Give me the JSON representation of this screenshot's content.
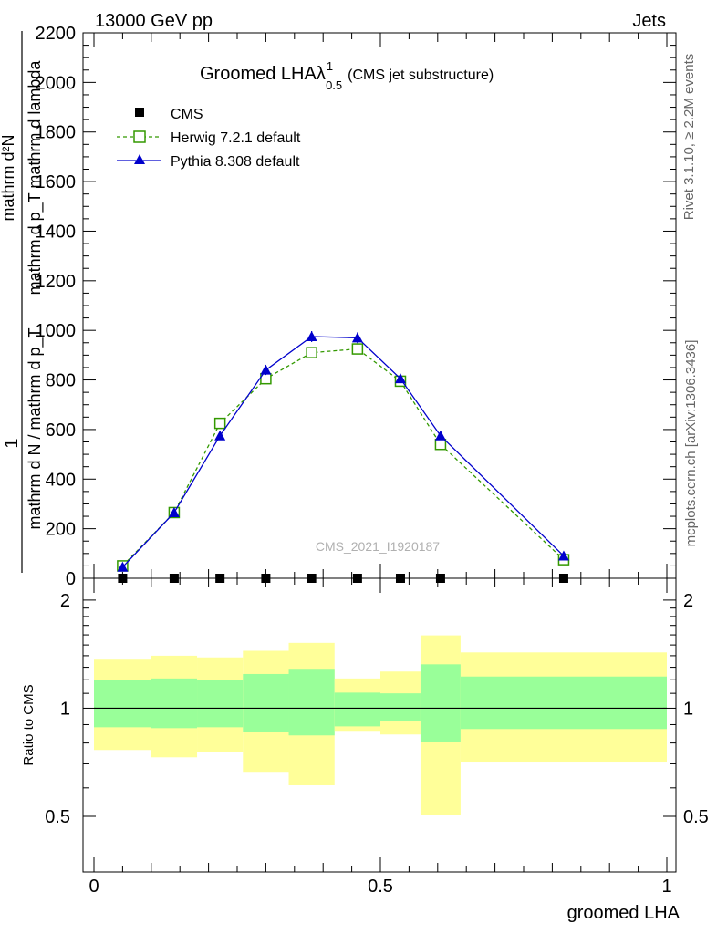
{
  "header": {
    "left": "13000 GeV pp",
    "right": "Jets"
  },
  "side_labels": {
    "rivet": "Rivet 3.1.10, ≥ 2.2M events",
    "mcplots": "mcplots.cern.ch [arXiv:1306.3436]"
  },
  "watermark": "CMS_2021_I1920187",
  "chart_data": [
    {
      "type": "line",
      "title": "Groomed LHA",
      "title_symbol": "λ",
      "title_superscript": "1",
      "title_subscript": "0.5",
      "title_suffix": "(CMS jet substructure)",
      "ylabel_top": "1",
      "ylabel_bottom": "mathrm d N / mathrm d p_T",
      "ylabel_top2": "mathrm d²N",
      "ylabel_bottom2": "mathrm d p_T mathrm d lambda",
      "ylim": [
        0,
        2200
      ],
      "xlim": [
        -0.02,
        1.0
      ],
      "yticks": [
        0,
        200,
        400,
        600,
        800,
        1000,
        1200,
        1400,
        1600,
        1800,
        2000,
        2200
      ],
      "ytick_labels": [
        "0",
        "200",
        "400",
        "600",
        "800",
        "1000",
        "1200",
        "1400",
        "1600",
        "1800",
        "2000",
        "2200"
      ],
      "legend_position": "top-left",
      "x": [
        0.05,
        0.14,
        0.22,
        0.3,
        0.38,
        0.46,
        0.535,
        0.605,
        0.82
      ],
      "series": [
        {
          "name": "CMS",
          "marker": "square-filled",
          "color": "#000000",
          "values": [
            0,
            0,
            0,
            0,
            0,
            0,
            0,
            0,
            0
          ]
        },
        {
          "name": "Herwig 7.2.1 default",
          "marker": "square-open",
          "line": "dashed",
          "color": "#339900",
          "values": [
            50,
            265,
            625,
            805,
            910,
            925,
            795,
            540,
            75
          ]
        },
        {
          "name": "Pythia 8.308 default",
          "marker": "triangle-filled",
          "line": "solid",
          "color": "#0000cc",
          "values": [
            45,
            265,
            575,
            840,
            975,
            970,
            805,
            575,
            90
          ],
          "errors": [
            5,
            8,
            12,
            20,
            22,
            22,
            18,
            14,
            5
          ]
        }
      ]
    },
    {
      "type": "area",
      "ylabel": "Ratio to CMS",
      "xlabel": "groomed LHA",
      "xlim": [
        -0.02,
        1.0
      ],
      "ylim": [
        0.35,
        2.3
      ],
      "xticks": [
        0,
        0.5,
        1
      ],
      "xtick_labels": [
        "0",
        "0.5",
        "1"
      ],
      "yticks": [
        0.5,
        1,
        2
      ],
      "ytick_labels": [
        "0.5",
        "1",
        "2"
      ],
      "reference_line": 1,
      "bins": [
        {
          "x0": 0.0,
          "x1": 0.1,
          "outer_lo": 0.765,
          "outer_hi": 1.365,
          "inner_lo": 0.885,
          "inner_hi": 1.195
        },
        {
          "x0": 0.1,
          "x1": 0.18,
          "outer_lo": 0.73,
          "outer_hi": 1.4,
          "inner_lo": 0.88,
          "inner_hi": 1.21
        },
        {
          "x0": 0.18,
          "x1": 0.26,
          "outer_lo": 0.755,
          "outer_hi": 1.385,
          "inner_lo": 0.885,
          "inner_hi": 1.2
        },
        {
          "x0": 0.26,
          "x1": 0.34,
          "outer_lo": 0.665,
          "outer_hi": 1.445,
          "inner_lo": 0.86,
          "inner_hi": 1.245
        },
        {
          "x0": 0.34,
          "x1": 0.42,
          "outer_lo": 0.61,
          "outer_hi": 1.52,
          "inner_lo": 0.84,
          "inner_hi": 1.28
        },
        {
          "x0": 0.42,
          "x1": 0.5,
          "outer_lo": 0.865,
          "outer_hi": 1.21,
          "inner_lo": 0.89,
          "inner_hi": 1.105
        },
        {
          "x0": 0.5,
          "x1": 0.57,
          "outer_lo": 0.845,
          "outer_hi": 1.265,
          "inner_lo": 0.92,
          "inner_hi": 1.1
        },
        {
          "x0": 0.57,
          "x1": 0.64,
          "outer_lo": 0.505,
          "outer_hi": 1.595,
          "inner_lo": 0.805,
          "inner_hi": 1.325
        },
        {
          "x0": 0.64,
          "x1": 1.0,
          "outer_lo": 0.71,
          "outer_hi": 1.43,
          "inner_lo": 0.875,
          "inner_hi": 1.225
        }
      ],
      "colors": {
        "outer_band": "#ffff99",
        "inner_band": "#99ff99"
      }
    }
  ]
}
